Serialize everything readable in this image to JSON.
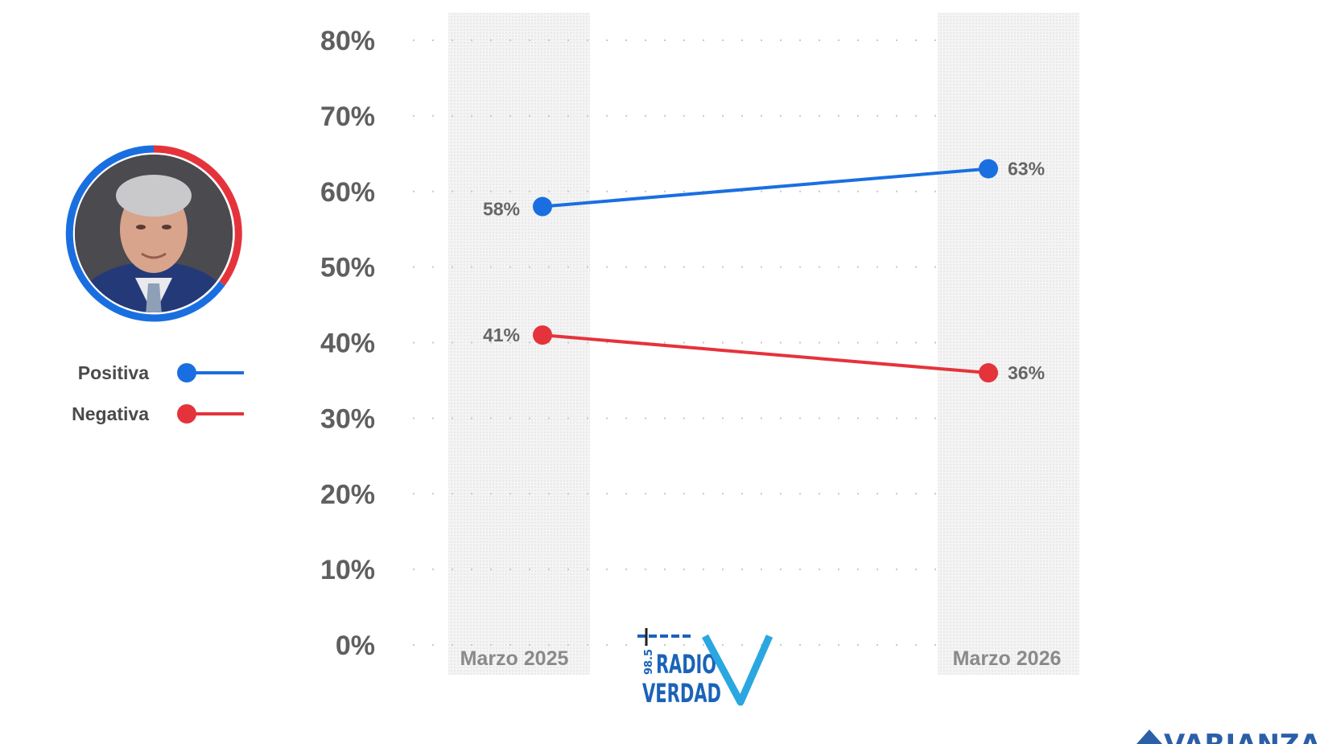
{
  "chart_data": {
    "type": "line",
    "categories": [
      "Marzo 2025",
      "Marzo 2026"
    ],
    "series": [
      {
        "name": "Positiva",
        "values": [
          58,
          63
        ],
        "labels": [
          "58%",
          "63%"
        ],
        "color": "#1a6fe0"
      },
      {
        "name": "Negativa",
        "values": [
          41,
          36
        ],
        "labels": [
          "41%",
          "36%"
        ],
        "color": "#e5333b"
      }
    ],
    "yticks": [
      "0%",
      "10%",
      "20%",
      "30%",
      "40%",
      "50%",
      "60%",
      "70%",
      "80%"
    ],
    "ylim": [
      0,
      80
    ],
    "grid": true,
    "legend_position": "left"
  },
  "logos": {
    "radio": {
      "frequency": "98.5",
      "line1": "RADIO",
      "line2": "VERDAD",
      "color": "#1a63b8",
      "accent": "#2aa7e0"
    },
    "brand": {
      "text": "VARIANZA",
      "color": "#2b5fa8"
    }
  },
  "portrait": {
    "ring_colors": [
      "#1a6fe0",
      "#e5333b"
    ]
  }
}
